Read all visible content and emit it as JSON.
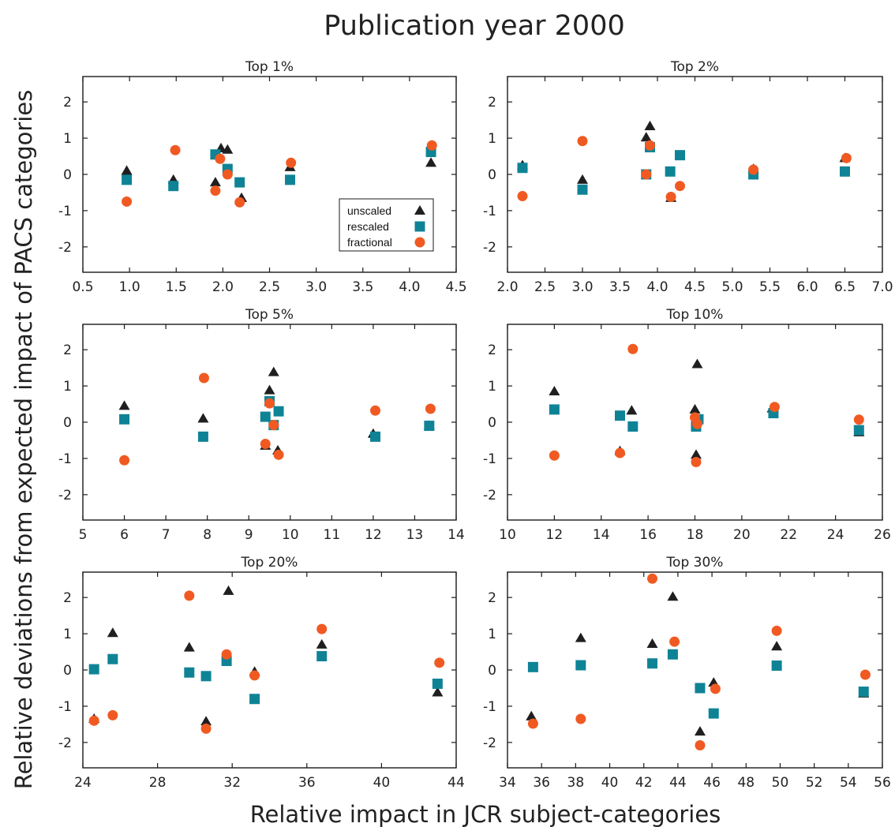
{
  "figure": {
    "title": "Publication year 2000",
    "xlabel": "Relative  impact in JCR subject-categories",
    "ylabel": "Relative deviations from expected impact of PACS categories"
  },
  "legend": {
    "items": [
      {
        "label": "unscaled",
        "marker": "triangle",
        "color": "#1f1f1f"
      },
      {
        "label": "rescaled",
        "marker": "square",
        "color": "#0f8396"
      },
      {
        "label": "fractional",
        "marker": "circle",
        "color": "#f05a22"
      }
    ]
  },
  "chart_data": [
    {
      "type": "scatter",
      "title": "Top 1%",
      "xlim": [
        0.5,
        4.5
      ],
      "ylim": [
        -2.7,
        2.7
      ],
      "xticks": [
        0.5,
        1.0,
        1.5,
        2.0,
        2.5,
        3.0,
        3.5,
        4.0,
        4.5
      ],
      "xtick_labels": [
        "0.5",
        "1.0",
        "1.5",
        "2.0",
        "2.5",
        "3.0",
        "3.5",
        "4.0",
        "4.5"
      ],
      "yticks": [
        -2,
        -1,
        0,
        1,
        2
      ],
      "ytick_labels": [
        "-2",
        "-1",
        "0",
        "1",
        "2"
      ],
      "legend": true,
      "series": [
        {
          "name": "unscaled",
          "points": [
            [
              0.97,
              0.1
            ],
            [
              1.47,
              -0.15
            ],
            [
              1.92,
              -0.22
            ],
            [
              1.98,
              0.72
            ],
            [
              2.05,
              0.68
            ],
            [
              2.2,
              -0.65
            ],
            [
              2.72,
              0.2
            ],
            [
              4.23,
              0.32
            ]
          ]
        },
        {
          "name": "rescaled",
          "points": [
            [
              0.97,
              -0.15
            ],
            [
              1.47,
              -0.32
            ],
            [
              1.92,
              0.55
            ],
            [
              2.05,
              0.15
            ],
            [
              2.18,
              -0.22
            ],
            [
              2.72,
              -0.15
            ],
            [
              4.23,
              0.62
            ]
          ]
        },
        {
          "name": "fractional",
          "points": [
            [
              0.97,
              -0.75
            ],
            [
              1.49,
              0.67
            ],
            [
              1.92,
              -0.45
            ],
            [
              1.97,
              0.43
            ],
            [
              2.05,
              0.0
            ],
            [
              2.18,
              -0.77
            ],
            [
              2.73,
              0.32
            ],
            [
              4.24,
              0.8
            ]
          ]
        }
      ]
    },
    {
      "type": "scatter",
      "title": "Top 2%",
      "xlim": [
        2.0,
        7.0
      ],
      "ylim": [
        -2.7,
        2.7
      ],
      "xticks": [
        2.0,
        2.5,
        3.0,
        3.5,
        4.0,
        4.5,
        5.0,
        5.5,
        6.0,
        6.5,
        7.0
      ],
      "xtick_labels": [
        "2.0",
        "2.5",
        "3.0",
        "3.5",
        "4.0",
        "4.5",
        "5.0",
        "5.5",
        "6.0",
        "6.5",
        "7.0"
      ],
      "yticks": [
        -2,
        -1,
        0,
        1,
        2
      ],
      "ytick_labels": [
        "-2",
        "-1",
        "0",
        "1",
        "2"
      ],
      "legend": false,
      "series": [
        {
          "name": "unscaled",
          "points": [
            [
              2.2,
              0.25
            ],
            [
              3.0,
              -0.15
            ],
            [
              3.85,
              1.02
            ],
            [
              3.9,
              1.33
            ],
            [
              4.18,
              -0.65
            ],
            [
              5.28,
              0.15
            ],
            [
              6.5,
              0.45
            ]
          ]
        },
        {
          "name": "rescaled",
          "points": [
            [
              2.2,
              0.18
            ],
            [
              3.0,
              -0.42
            ],
            [
              3.85,
              0.0
            ],
            [
              3.9,
              0.75
            ],
            [
              4.17,
              0.08
            ],
            [
              4.3,
              0.53
            ],
            [
              5.28,
              0.0
            ],
            [
              6.5,
              0.08
            ]
          ]
        },
        {
          "name": "fractional",
          "points": [
            [
              2.2,
              -0.6
            ],
            [
              3.0,
              0.92
            ],
            [
              3.85,
              0.0
            ],
            [
              3.9,
              0.8
            ],
            [
              4.18,
              -0.62
            ],
            [
              4.3,
              -0.32
            ],
            [
              5.28,
              0.13
            ],
            [
              6.52,
              0.45
            ]
          ]
        }
      ]
    },
    {
      "type": "scatter",
      "title": "Top 5%",
      "xlim": [
        5,
        14
      ],
      "ylim": [
        -2.7,
        2.7
      ],
      "xticks": [
        5,
        6,
        7,
        8,
        9,
        10,
        11,
        12,
        13,
        14
      ],
      "xtick_labels": [
        "5",
        "6",
        "7",
        "8",
        "9",
        "10",
        "11",
        "12",
        "13",
        "14"
      ],
      "yticks": [
        -2,
        -1,
        0,
        1,
        2
      ],
      "ytick_labels": [
        "-2",
        "-1",
        "0",
        "1",
        "2"
      ],
      "legend": false,
      "series": [
        {
          "name": "unscaled",
          "points": [
            [
              6.0,
              0.45
            ],
            [
              7.9,
              0.1
            ],
            [
              9.4,
              -0.65
            ],
            [
              9.5,
              0.88
            ],
            [
              9.6,
              1.38
            ],
            [
              9.7,
              -0.78
            ],
            [
              12.0,
              -0.32
            ],
            [
              13.35,
              -0.1
            ]
          ]
        },
        {
          "name": "rescaled",
          "points": [
            [
              6.0,
              0.08
            ],
            [
              7.9,
              -0.4
            ],
            [
              9.4,
              0.15
            ],
            [
              9.5,
              0.58
            ],
            [
              9.6,
              -0.08
            ],
            [
              9.72,
              0.3
            ],
            [
              12.05,
              -0.4
            ],
            [
              13.35,
              -0.1
            ]
          ]
        },
        {
          "name": "fractional",
          "points": [
            [
              6.0,
              -1.05
            ],
            [
              7.92,
              1.22
            ],
            [
              9.4,
              -0.6
            ],
            [
              9.5,
              0.52
            ],
            [
              9.6,
              -0.08
            ],
            [
              9.72,
              -0.9
            ],
            [
              12.05,
              0.32
            ],
            [
              13.38,
              0.37
            ]
          ]
        }
      ]
    },
    {
      "type": "scatter",
      "title": "Top 10%",
      "xlim": [
        10,
        26
      ],
      "ylim": [
        -2.7,
        2.7
      ],
      "xticks": [
        10,
        12,
        14,
        16,
        18,
        20,
        22,
        24,
        26
      ],
      "xtick_labels": [
        "10",
        "12",
        "14",
        "16",
        "18",
        "20",
        "22",
        "24",
        "26"
      ],
      "yticks": [
        -2,
        -1,
        0,
        1,
        2
      ],
      "ytick_labels": [
        "-2",
        "-1",
        "0",
        "1",
        "2"
      ],
      "legend": false,
      "series": [
        {
          "name": "unscaled",
          "points": [
            [
              12.0,
              0.85
            ],
            [
              14.8,
              -0.8
            ],
            [
              15.3,
              0.32
            ],
            [
              18.0,
              0.35
            ],
            [
              18.05,
              -0.9
            ],
            [
              18.1,
              1.6
            ],
            [
              21.3,
              0.38
            ],
            [
              25.0,
              -0.28
            ]
          ]
        },
        {
          "name": "rescaled",
          "points": [
            [
              12.0,
              0.35
            ],
            [
              14.8,
              0.18
            ],
            [
              15.35,
              -0.12
            ],
            [
              18.05,
              -0.12
            ],
            [
              18.15,
              0.08
            ],
            [
              21.35,
              0.25
            ],
            [
              25.0,
              -0.22
            ]
          ]
        },
        {
          "name": "fractional",
          "points": [
            [
              12.0,
              -0.92
            ],
            [
              14.8,
              -0.85
            ],
            [
              15.35,
              2.02
            ],
            [
              18.0,
              0.13
            ],
            [
              18.05,
              -1.1
            ],
            [
              18.1,
              -0.05
            ],
            [
              21.4,
              0.42
            ],
            [
              25.0,
              0.07
            ]
          ]
        }
      ]
    },
    {
      "type": "scatter",
      "title": "Top 20%",
      "xlim": [
        24,
        44
      ],
      "ylim": [
        -2.7,
        2.7
      ],
      "xticks": [
        24,
        28,
        32,
        36,
        40,
        44
      ],
      "xtick_labels": [
        "24",
        "28",
        "32",
        "36",
        "40",
        "44"
      ],
      "yticks": [
        -2,
        -1,
        0,
        1,
        2
      ],
      "ytick_labels": [
        "-2",
        "-1",
        "0",
        "1",
        "2"
      ],
      "legend": false,
      "series": [
        {
          "name": "unscaled",
          "points": [
            [
              24.6,
              -1.35
            ],
            [
              25.6,
              1.02
            ],
            [
              29.7,
              0.62
            ],
            [
              30.6,
              -1.42
            ],
            [
              31.8,
              2.18
            ],
            [
              33.2,
              -0.05
            ],
            [
              36.8,
              0.7
            ],
            [
              43.0,
              -0.62
            ]
          ]
        },
        {
          "name": "rescaled",
          "points": [
            [
              24.6,
              0.02
            ],
            [
              25.6,
              0.3
            ],
            [
              29.7,
              -0.07
            ],
            [
              30.6,
              -0.17
            ],
            [
              31.7,
              0.25
            ],
            [
              33.2,
              -0.8
            ],
            [
              36.8,
              0.38
            ],
            [
              43.0,
              -0.38
            ]
          ]
        },
        {
          "name": "fractional",
          "points": [
            [
              24.6,
              -1.4
            ],
            [
              25.6,
              -1.25
            ],
            [
              29.7,
              2.05
            ],
            [
              30.6,
              -1.62
            ],
            [
              31.7,
              0.43
            ],
            [
              33.2,
              -0.15
            ],
            [
              36.8,
              1.13
            ],
            [
              43.1,
              0.2
            ]
          ]
        }
      ]
    },
    {
      "type": "scatter",
      "title": "Top 30%",
      "xlim": [
        34,
        56
      ],
      "ylim": [
        -2.7,
        2.7
      ],
      "xticks": [
        34,
        36,
        38,
        40,
        42,
        44,
        46,
        48,
        50,
        52,
        54,
        56
      ],
      "xtick_labels": [
        "34",
        "36",
        "38",
        "40",
        "42",
        "44",
        "46",
        "48",
        "50",
        "52",
        "54",
        "56"
      ],
      "yticks": [
        -2,
        -1,
        0,
        1,
        2
      ],
      "ytick_labels": [
        "-2",
        "-1",
        "0",
        "1",
        "2"
      ],
      "legend": false,
      "series": [
        {
          "name": "unscaled",
          "points": [
            [
              35.4,
              -1.28
            ],
            [
              38.3,
              0.88
            ],
            [
              42.5,
              0.72
            ],
            [
              43.7,
              2.02
            ],
            [
              45.3,
              -1.7
            ],
            [
              46.1,
              -0.35
            ],
            [
              49.8,
              0.65
            ],
            [
              54.9,
              -0.65
            ]
          ]
        },
        {
          "name": "rescaled",
          "points": [
            [
              35.5,
              0.08
            ],
            [
              38.3,
              0.13
            ],
            [
              42.5,
              0.18
            ],
            [
              43.7,
              0.43
            ],
            [
              45.3,
              -0.5
            ],
            [
              46.1,
              -1.2
            ],
            [
              49.8,
              0.12
            ],
            [
              54.9,
              -0.6
            ]
          ]
        },
        {
          "name": "fractional",
          "points": [
            [
              35.5,
              -1.48
            ],
            [
              38.3,
              -1.35
            ],
            [
              42.5,
              2.52
            ],
            [
              43.8,
              0.78
            ],
            [
              45.3,
              -2.08
            ],
            [
              46.2,
              -0.52
            ],
            [
              49.8,
              1.08
            ],
            [
              55.0,
              -0.13
            ]
          ]
        }
      ]
    }
  ]
}
